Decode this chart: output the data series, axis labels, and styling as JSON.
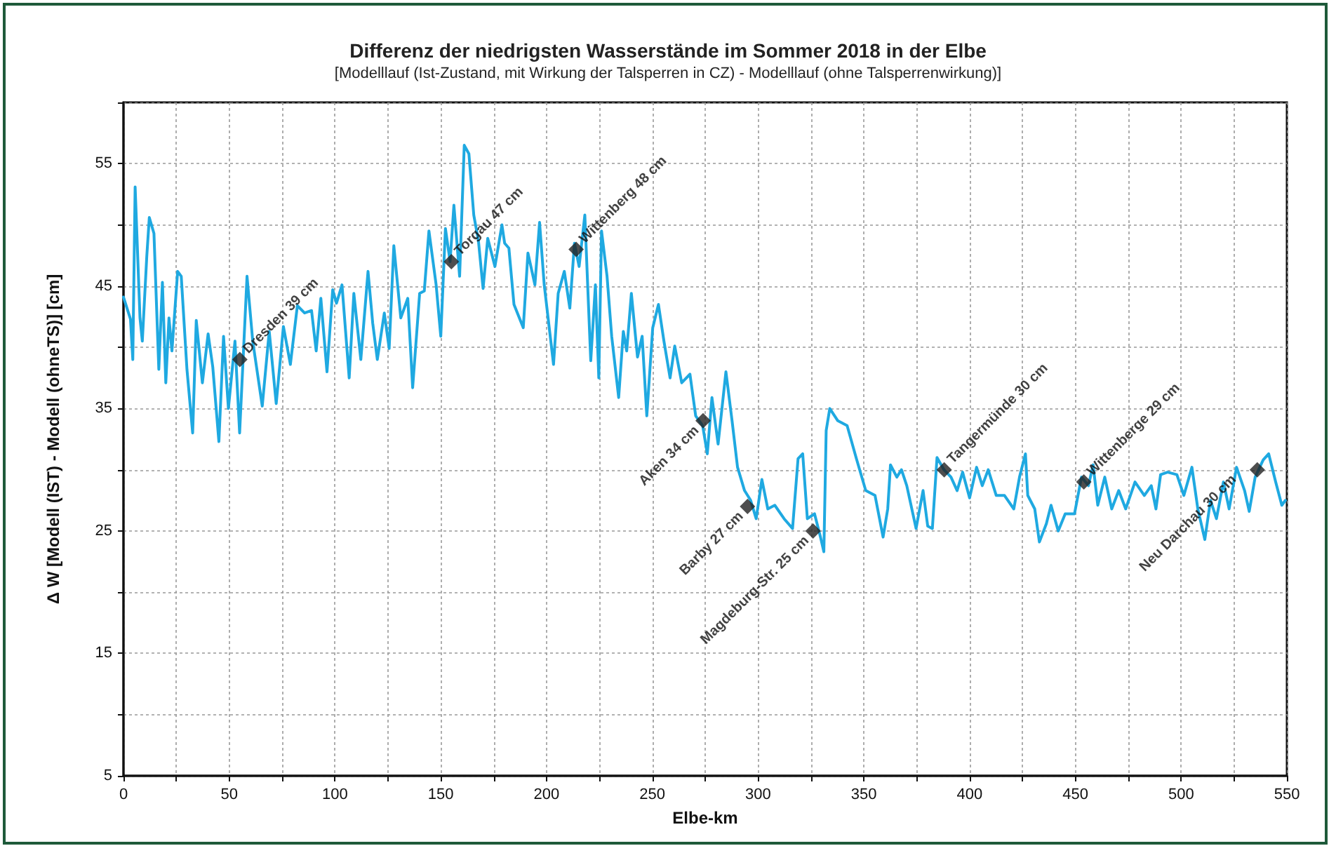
{
  "chart_data": {
    "type": "line",
    "title": "Differenz der niedrigsten Wasserstände im Sommer 2018 in der Elbe",
    "subtitle": "[Modelllauf (Ist-Zustand, mit Wirkung der Talsperren in CZ) - Modelllauf (ohne Talsperrenwirkung)]",
    "xlabel": "Elbe-km",
    "ylabel": "Δ W [Modell (IST) - Modell (ohneTS)] [cm]",
    "xlim": [
      0,
      550
    ],
    "ylim": [
      5,
      60
    ],
    "xticks": [
      0,
      {
        "value": 25,
        "label": null
      },
      50,
      {
        "value": 75,
        "label": null
      },
      100,
      {
        "value": 125,
        "label": null
      },
      150,
      {
        "value": 175,
        "label": null
      },
      200,
      {
        "value": 225,
        "label": null
      },
      250,
      {
        "value": 275,
        "label": null
      },
      300,
      {
        "value": 325,
        "label": null
      },
      350,
      {
        "value": 375,
        "label": null
      },
      400,
      {
        "value": 425,
        "label": null
      },
      450,
      {
        "value": 475,
        "label": null
      },
      500,
      {
        "value": 525,
        "label": null
      },
      550
    ],
    "yticks": [
      5,
      {
        "value": 10,
        "label": null
      },
      15,
      {
        "value": 20,
        "label": null
      },
      25,
      {
        "value": 30,
        "label": null
      },
      35,
      {
        "value": 40,
        "label": null
      },
      45,
      {
        "value": 50,
        "label": null
      },
      55,
      {
        "value": 60,
        "label": null
      }
    ],
    "grid": true,
    "series": [
      {
        "color": "#1fa9e1",
        "marker": "none",
        "line_style": "solid",
        "x": [
          0,
          3.3,
          4.4,
          5.5,
          7.8,
          8.9,
          11,
          12.2,
          14.4,
          16.7,
          18.4,
          20,
          21.5,
          22.9,
          25.6,
          27.3,
          30,
          32.7,
          34.4,
          37.3,
          40,
          42.2,
          45.1,
          47.3,
          49.6,
          52.7,
          54.9,
          58.4,
          61.1,
          65.6,
          68.9,
          72.2,
          75.6,
          78.9,
          82.2,
          85.6,
          88.9,
          91.1,
          93.3,
          96.2,
          98.9,
          100.7,
          103.3,
          106.7,
          108.9,
          112.2,
          115.6,
          117.8,
          120,
          123.3,
          125.6,
          127.8,
          131.1,
          134.4,
          136.7,
          140,
          142.2,
          144.4,
          147.8,
          150,
          152.2,
          154.4,
          156.2,
          158.9,
          161.1,
          163.3,
          165.6,
          167.8,
          170,
          172.2,
          175.6,
          178.9,
          180.2,
          182.2,
          184.6,
          189,
          191.2,
          194.5,
          196.7,
          198.9,
          203.3,
          205.5,
          208.4,
          211,
          213.2,
          215.4,
          218.1,
          220.9,
          223.1,
          224.7,
          226,
          228.6,
          230.8,
          234.1,
          236.3,
          237.9,
          240.1,
          243,
          245.2,
          247.4,
          250.2,
          252.9,
          255.5,
          258.4,
          260.6,
          263.9,
          267.8,
          270.5,
          273.8,
          276,
          278.2,
          281.1,
          284.8,
          287.7,
          290.3,
          293.6,
          296.5,
          299.1,
          301.8,
          304.6,
          307.9,
          312.3,
          316.3,
          318.9,
          321.1,
          323.3,
          326.7,
          329.5,
          331.1,
          332.2,
          333.9,
          337.7,
          342.1,
          346.5,
          350.9,
          355.3,
          359.1,
          361.3,
          362.6,
          365.6,
          367.8,
          370.3,
          374.7,
          378,
          380.2,
          382.4,
          384.6,
          387.9,
          391.2,
          394.1,
          396.7,
          400,
          403.3,
          406,
          408.8,
          412.6,
          416.5,
          420.9,
          423.6,
          426.4,
          427.5,
          430.8,
          433,
          436.3,
          438.5,
          441.9,
          445.2,
          449.6,
          452.9,
          456.2,
          458.4,
          460.6,
          463.9,
          467.2,
          470.5,
          473.8,
          478.2,
          482.6,
          485.9,
          488.1,
          490.3,
          493.6,
          498,
          501.3,
          505.1,
          507.9,
          511.2,
          513.9,
          516.7,
          520,
          522.7,
          526.2,
          530,
          532.2,
          535,
          538.8,
          541.4,
          544.7,
          547.6,
          549.3
        ],
        "values": [
          44.1,
          42.3,
          39,
          53.1,
          42.4,
          40.5,
          47.4,
          50.6,
          49.3,
          38.2,
          45.3,
          37.1,
          42.4,
          39.7,
          46.2,
          45.8,
          38.2,
          33,
          42.2,
          37.1,
          41.1,
          38.4,
          32.3,
          40.9,
          35,
          40.5,
          33,
          45.8,
          40.5,
          35.2,
          41.3,
          35.4,
          41.7,
          38.6,
          43.4,
          42.8,
          43,
          39.7,
          44,
          38,
          44.7,
          43.6,
          45.1,
          37.5,
          44.4,
          39,
          46.2,
          42,
          39,
          42.8,
          39.9,
          48.3,
          42.4,
          44,
          36.7,
          44.4,
          44.6,
          49.5,
          45.1,
          40.9,
          49.7,
          47,
          51.6,
          45.8,
          56.5,
          55.8,
          50.8,
          48.7,
          44.8,
          48.9,
          46.6,
          50,
          48.5,
          48.1,
          43.5,
          41.6,
          47.7,
          45.1,
          50.2,
          45.1,
          38.6,
          44.4,
          46.2,
          43.2,
          48.5,
          46.6,
          50.8,
          38.9,
          45.1,
          37.5,
          49.5,
          45.8,
          40.9,
          35.9,
          41.3,
          39.7,
          44.4,
          39.2,
          40.9,
          34.4,
          41.6,
          43.5,
          40.5,
          37.5,
          40.1,
          37.1,
          37.8,
          34.4,
          33.6,
          31.3,
          35.9,
          32.1,
          38,
          34,
          30.2,
          28.3,
          27.5,
          26,
          29.2,
          26.8,
          27.1,
          26,
          25.2,
          30.9,
          31.3,
          26,
          26.4,
          24.5,
          23.3,
          33.2,
          35,
          34,
          33.6,
          30.9,
          28.3,
          27.9,
          24.5,
          26.8,
          30.4,
          29.4,
          30,
          28.7,
          25.2,
          28.3,
          25.4,
          25.2,
          31,
          30,
          29.4,
          28.3,
          29.8,
          27.7,
          30.2,
          28.7,
          30,
          27.9,
          27.9,
          26.8,
          29.4,
          31.3,
          27.9,
          26.8,
          24.1,
          25.6,
          27.1,
          25,
          26.4,
          26.4,
          29.4,
          28.7,
          30.4,
          27.1,
          29.4,
          26.8,
          28.3,
          26.8,
          29,
          27.9,
          28.7,
          26.8,
          29.6,
          29.8,
          29.6,
          27.9,
          30.2,
          26.8,
          24.3,
          27.5,
          26,
          29,
          26.8,
          30.2,
          28.3,
          26.6,
          29.4,
          30.8,
          31.3,
          29,
          27.1,
          27.5
        ]
      },
      {
        "type": "scatter",
        "color": "#222222",
        "marker": "diamond",
        "x": [
          55,
          155,
          214,
          274,
          295,
          326,
          388,
          454,
          536
        ],
        "values": [
          39,
          47,
          48,
          34,
          27,
          25,
          30,
          29,
          30
        ]
      }
    ],
    "annotations": [
      {
        "text": "Dresden 39 cm",
        "x": 55,
        "y": 39
      },
      {
        "text": "Torgau 47 cm",
        "x": 155,
        "y": 47
      },
      {
        "text": "Wittenberg 48 cm",
        "x": 214,
        "y": 48
      },
      {
        "text": "Aken 34 cm",
        "x": 274,
        "y": 34
      },
      {
        "text": "Barby 27 cm",
        "x": 295,
        "y": 27
      },
      {
        "text": "Magdeburg-Str. 25 cm",
        "x": 326,
        "y": 25
      },
      {
        "text": "Tangermünde 30 cm",
        "x": 388,
        "y": 30
      },
      {
        "text": "Wittenberge 29 cm",
        "x": 454,
        "y": 29
      },
      {
        "text": "Neu Darchau 30 cm",
        "x": 536,
        "y": 30
      }
    ]
  }
}
